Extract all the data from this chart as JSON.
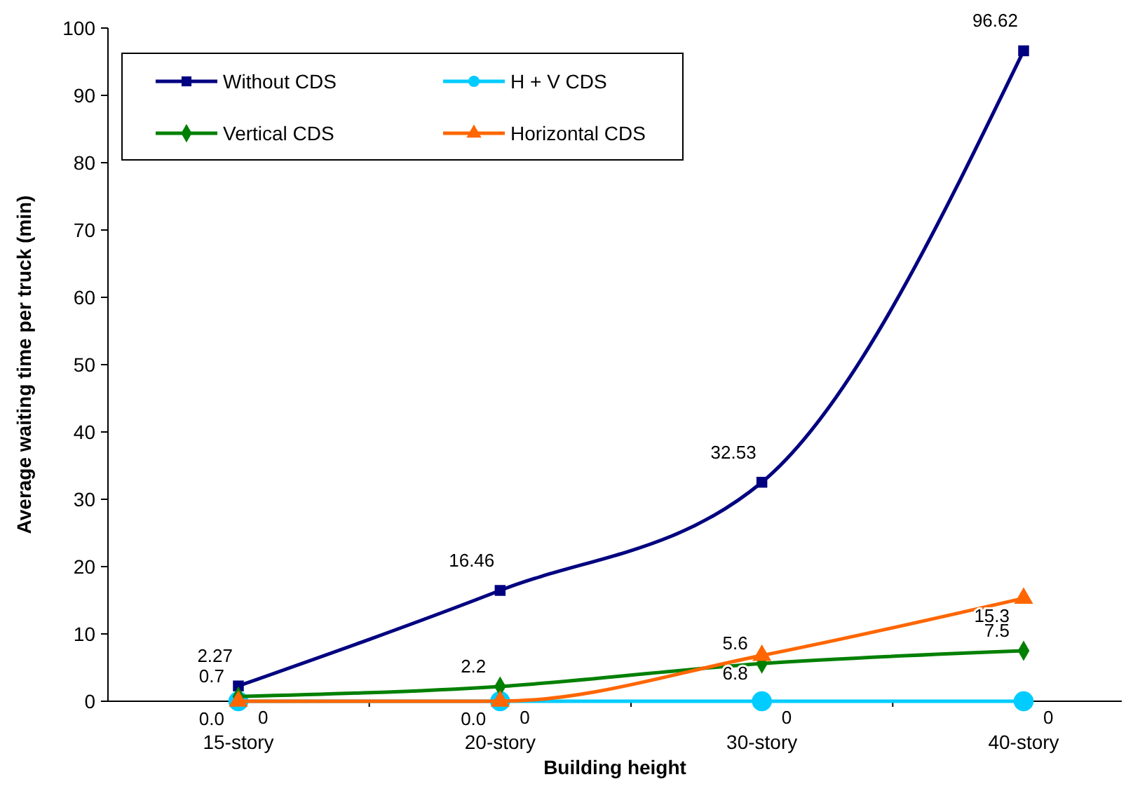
{
  "chart_data": {
    "type": "line",
    "xlabel": "Building height",
    "ylabel": "Average waiting time per truck (min)",
    "categories": [
      "15-story",
      "20-story",
      "30-story",
      "40-story"
    ],
    "ylim": [
      0,
      100
    ],
    "yticks": [
      0,
      10,
      20,
      30,
      40,
      50,
      60,
      70,
      80,
      90,
      100
    ],
    "grid": false,
    "legend": "top left",
    "line_style": "solid",
    "series": [
      {
        "name": "Without CDS",
        "color": "#000080",
        "marker": "square",
        "values": [
          2.27,
          16.46,
          32.53,
          96.62
        ],
        "value_labels": [
          "2.27",
          "16.46",
          "32.53",
          "96.62"
        ]
      },
      {
        "name": "H + V CDS",
        "color": "#00ccff",
        "marker": "circle",
        "values": [
          0,
          0,
          0,
          0
        ],
        "value_labels": [
          "0",
          "0",
          "0",
          "0"
        ]
      },
      {
        "name": "Vertical CDS",
        "color": "#008000",
        "marker": "diamond",
        "values": [
          0.7,
          2.2,
          5.6,
          7.5
        ],
        "value_labels": [
          "0.7",
          "2.2",
          "5.6",
          "7.5"
        ]
      },
      {
        "name": "Horizontal CDS",
        "color": "#ff6600",
        "marker": "triangle",
        "values": [
          0.0,
          0.0,
          6.8,
          15.3
        ],
        "value_labels": [
          "0.0",
          "0.0",
          "6.8",
          "15.3"
        ]
      }
    ]
  }
}
